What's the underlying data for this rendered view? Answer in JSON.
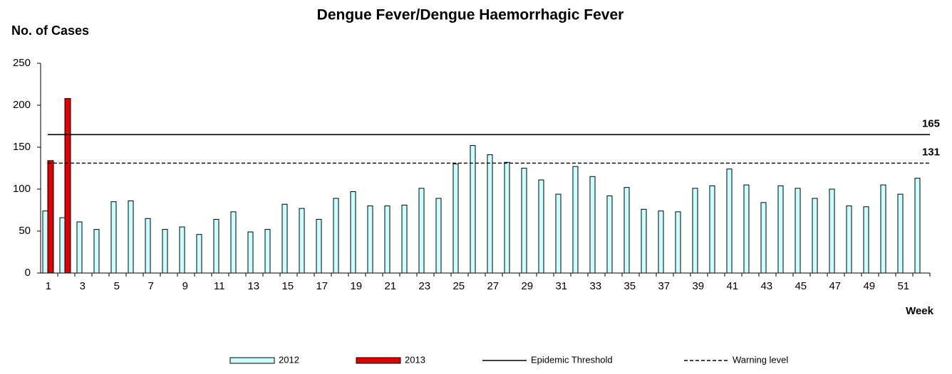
{
  "chart_data": {
    "type": "bar",
    "title": "Dengue Fever/Dengue Haemorrhagic Fever",
    "y_label": "No. of Cases",
    "x_label": "Week",
    "categories": [
      "1",
      null,
      "3",
      null,
      "5",
      null,
      "7",
      null,
      "9",
      null,
      "11",
      null,
      "13",
      null,
      "15",
      null,
      "17",
      null,
      "19",
      null,
      "21",
      null,
      "23",
      null,
      "25",
      null,
      "27",
      null,
      "29",
      null,
      "31",
      null,
      "33",
      null,
      "35",
      null,
      "37",
      null,
      "39",
      null,
      "41",
      null,
      "43",
      null,
      "45",
      null,
      "47",
      null,
      "49",
      null,
      "51",
      null
    ],
    "series": [
      {
        "name": "2012",
        "color": "#ccffff",
        "values": [
          74,
          66,
          61,
          52,
          85,
          86,
          65,
          52,
          55,
          46,
          64,
          73,
          49,
          52,
          82,
          77,
          64,
          89,
          97,
          80,
          80,
          81,
          101,
          89,
          130,
          152,
          141,
          132,
          125,
          111,
          94,
          127,
          115,
          92,
          102,
          76,
          74,
          73,
          101,
          104,
          124,
          105,
          84,
          104,
          101,
          89,
          100,
          80,
          79,
          105,
          94,
          113
        ]
      },
      {
        "name": "2013",
        "color": "#e00000",
        "values": [
          134,
          208,
          null,
          null,
          null,
          null,
          null,
          null,
          null,
          null,
          null,
          null,
          null,
          null,
          null,
          null,
          null,
          null,
          null,
          null,
          null,
          null,
          null,
          null,
          null,
          null,
          null,
          null,
          null,
          null,
          null,
          null,
          null,
          null,
          null,
          null,
          null,
          null,
          null,
          null,
          null,
          null,
          null,
          null,
          null,
          null,
          null,
          null,
          null,
          null,
          null,
          null
        ]
      }
    ],
    "lines": [
      {
        "name": "Epidemic Threshold",
        "value": 165,
        "dash": false
      },
      {
        "name": "Warning level",
        "value": 131,
        "dash": true
      }
    ],
    "ylim": [
      0,
      250
    ],
    "yticks": [
      0,
      50,
      100,
      150,
      200,
      250
    ]
  }
}
